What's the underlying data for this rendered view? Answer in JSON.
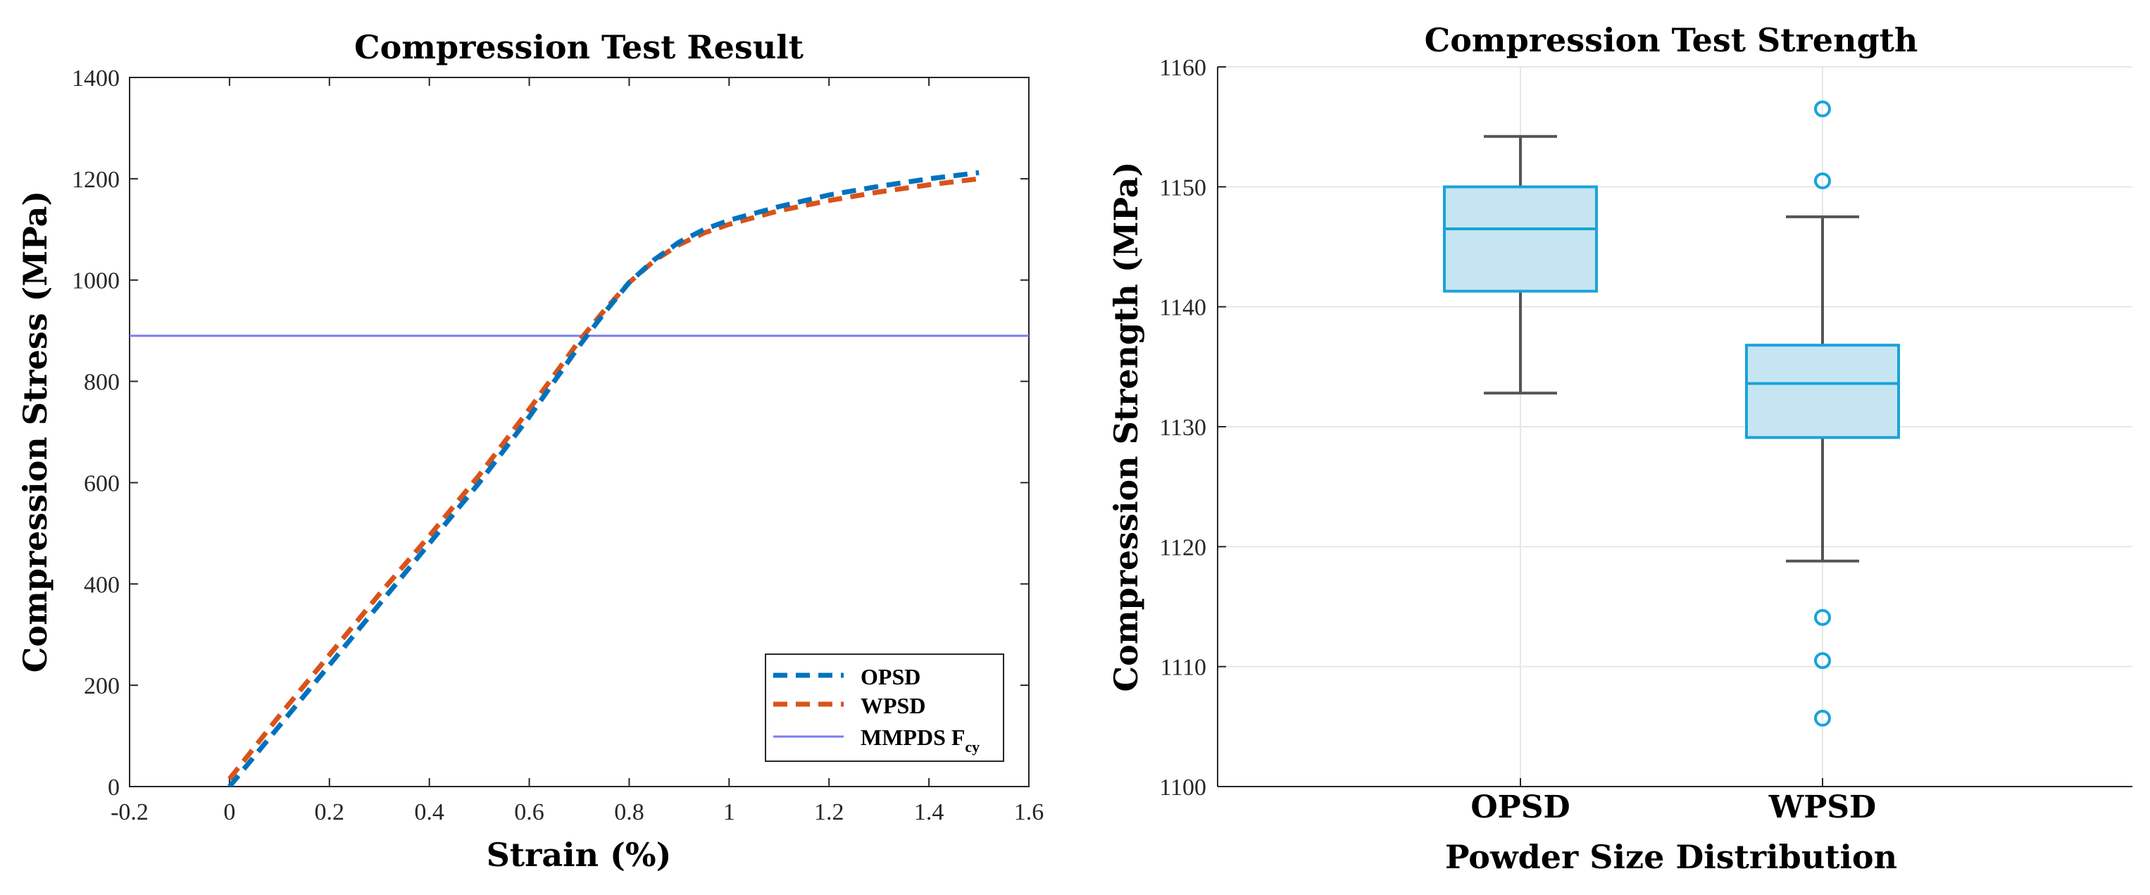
{
  "chart_data": [
    {
      "type": "line",
      "title": "Compression Test Result",
      "xlabel": "Strain (%)",
      "ylabel": "Compression Stress (MPa)",
      "xlim": [
        -0.2,
        1.6
      ],
      "ylim": [
        0,
        1400
      ],
      "xticks": [
        "-0.2",
        "0",
        "0.2",
        "0.4",
        "0.6",
        "0.8",
        "1",
        "1.2",
        "1.4",
        "1.6"
      ],
      "yticks": [
        "0",
        "200",
        "400",
        "600",
        "800",
        "1000",
        "1200",
        "1400"
      ],
      "legend": {
        "position": "bottom-right",
        "entries": [
          "OPSD",
          "WPSD",
          "MMPDS F",
          "cy"
        ]
      },
      "series": [
        {
          "name": "OPSD",
          "color": "#0072BD",
          "style": "dashed",
          "x": [
            0,
            0.1,
            0.2,
            0.3,
            0.4,
            0.5,
            0.6,
            0.7,
            0.75,
            0.8,
            0.85,
            0.9,
            0.95,
            1.0,
            1.1,
            1.2,
            1.3,
            1.4,
            1.5
          ],
          "y": [
            0,
            120,
            240,
            360,
            480,
            600,
            730,
            870,
            935,
            995,
            1040,
            1075,
            1100,
            1118,
            1145,
            1168,
            1185,
            1200,
            1212
          ]
        },
        {
          "name": "WPSD",
          "color": "#D95319",
          "style": "dashed",
          "x": [
            0,
            0.1,
            0.2,
            0.3,
            0.4,
            0.5,
            0.6,
            0.7,
            0.75,
            0.8,
            0.85,
            0.9,
            0.95,
            1.0,
            1.1,
            1.2,
            1.3,
            1.4,
            1.5
          ],
          "y": [
            15,
            140,
            260,
            380,
            495,
            615,
            745,
            880,
            940,
            995,
            1038,
            1070,
            1093,
            1110,
            1137,
            1157,
            1174,
            1188,
            1200
          ]
        },
        {
          "name": "MMPDS Fcy",
          "color": "#7B7BF5",
          "style": "solid",
          "x": [
            -0.2,
            1.6
          ],
          "y": [
            890,
            890
          ]
        }
      ]
    },
    {
      "type": "box",
      "title": "Compression Test Strength",
      "xlabel": "Powder Size Distribution",
      "ylabel": "Compression Strength (MPa)",
      "ylim": [
        1100,
        1160
      ],
      "yticks": [
        "1100",
        "1110",
        "1120",
        "1130",
        "1140",
        "1150",
        "1160"
      ],
      "categories": [
        "OPSD",
        "WPSD"
      ],
      "boxes": [
        {
          "name": "OPSD",
          "whisker_low": 1132.8,
          "q1": 1141.3,
          "median": 1146.5,
          "q3": 1150,
          "whisker_high": 1154.2,
          "outliers": []
        },
        {
          "name": "WPSD",
          "whisker_low": 1118.8,
          "q1": 1129.1,
          "median": 1133.6,
          "q3": 1136.8,
          "whisker_high": 1147.5,
          "outliers": [
            1156.5,
            1150.5,
            1114.1,
            1110.5,
            1105.7
          ]
        }
      ],
      "box_color": "#1AA3D9",
      "box_fill": "#C6E5F2",
      "whisker_color": "#555555"
    }
  ]
}
